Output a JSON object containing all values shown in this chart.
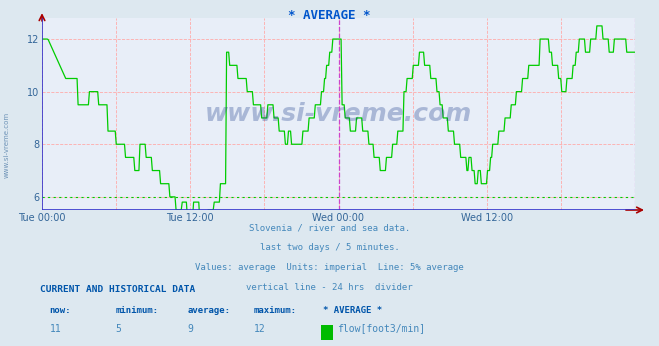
{
  "title": "* AVERAGE *",
  "title_color": "#0055cc",
  "bg_color": "#dde8f0",
  "plot_bg_color": "#e8eef8",
  "line_color": "#00cc00",
  "grid_color_pink": "#ffaaaa",
  "grid_color_green": "#00cc00",
  "divider_color": "#cc44cc",
  "now_line_color": "#cc44cc",
  "bottom_axis_color": "#3333cc",
  "left_axis_color": "#3333cc",
  "arrow_color": "#aa0000",
  "xticklabels": [
    "Tue 00:00",
    "Tue 12:00",
    "Wed 00:00",
    "Wed 12:00"
  ],
  "xtick_positions": [
    0.0,
    0.25,
    0.5,
    0.75
  ],
  "ylim": [
    5.5,
    12.8
  ],
  "yticks": [
    6,
    8,
    10,
    12
  ],
  "tick_color": "#336699",
  "watermark": "www.si-vreme.com",
  "watermark_color": "#1a3a8a",
  "watermark_alpha": 0.3,
  "side_label": "www.si-vreme.com",
  "subtitle_lines": [
    "Slovenia / river and sea data.",
    "last two days / 5 minutes.",
    "Values: average  Units: imperial  Line: 5% average",
    "vertical line - 24 hrs  divider"
  ],
  "subtitle_color": "#4488bb",
  "footer_header": "CURRENT AND HISTORICAL DATA",
  "footer_header_color": "#0055aa",
  "footer_cols": [
    "now:",
    "minimum:",
    "average:",
    "maximum:",
    "* AVERAGE *"
  ],
  "footer_vals": [
    "11",
    "5",
    "9",
    "12",
    "flow[foot3/min]"
  ],
  "avg_value": 6,
  "n_points": 576,
  "legend_color": "#00bb00"
}
